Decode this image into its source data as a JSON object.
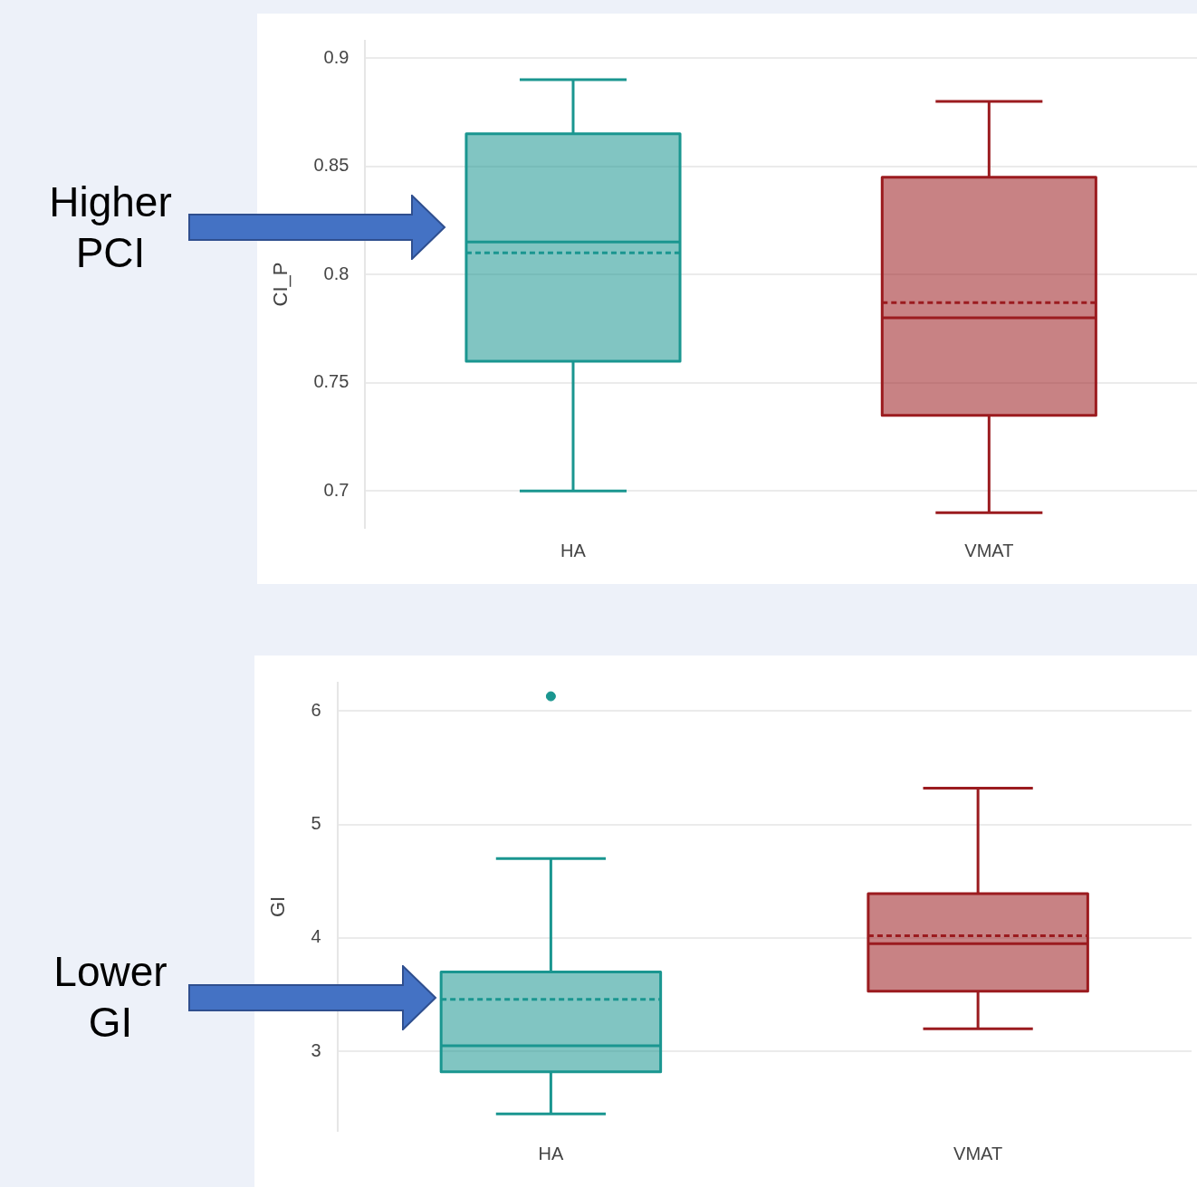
{
  "chart_data": [
    {
      "type": "box",
      "categories": [
        "HA",
        "VMAT"
      ],
      "ylabel": "CI_P",
      "ylim": [
        0.683,
        0.908
      ],
      "yticks": [
        0.7,
        0.75,
        0.8,
        0.85,
        0.9
      ],
      "grid": "y",
      "colors": [
        "#1a9690",
        "#9b1b1f"
      ],
      "boxes": [
        {
          "low": 0.7,
          "q1": 0.76,
          "median": 0.815,
          "q3": 0.865,
          "high": 0.89,
          "mean": 0.81
        },
        {
          "low": 0.69,
          "q1": 0.735,
          "median": 0.78,
          "q3": 0.845,
          "high": 0.88,
          "mean": 0.787
        }
      ],
      "annotations": [
        "Higher PCI"
      ]
    },
    {
      "type": "box",
      "categories": [
        "HA",
        "VMAT"
      ],
      "ylabel": "GI",
      "ylim": [
        2.3,
        6.25
      ],
      "yticks": [
        3,
        4,
        5,
        6
      ],
      "grid": "y",
      "colors": [
        "#1a9690",
        "#9b1b1f"
      ],
      "boxes": [
        {
          "low": 2.45,
          "q1": 2.82,
          "median": 3.05,
          "q3": 3.7,
          "high": 4.7,
          "mean": 3.46,
          "outliers": [
            6.13
          ]
        },
        {
          "low": 3.2,
          "q1": 3.53,
          "median": 3.95,
          "q3": 4.39,
          "high": 5.32,
          "mean": 4.02
        }
      ],
      "annotations": [
        "Lower GI"
      ]
    }
  ]
}
